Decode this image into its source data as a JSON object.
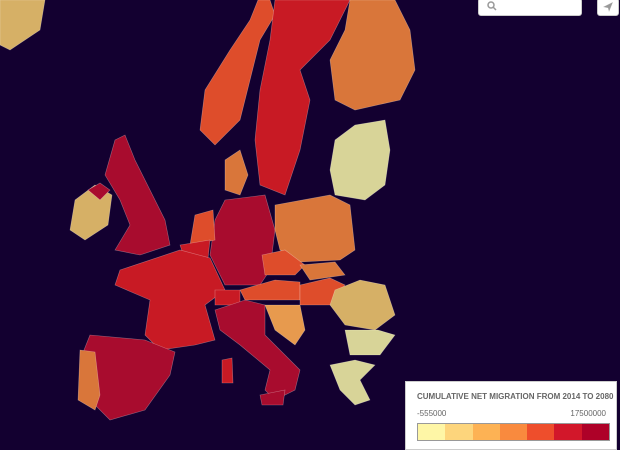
{
  "legend": {
    "title": "CUMULATIVE NET MIGRATION FROM 2014 TO 2080",
    "min_label": -555000,
    "max_label": 17500000,
    "colors": [
      "#fef6a6",
      "#fdd57c",
      "#fdb254",
      "#f98a3e",
      "#ee4e2c",
      "#d2172a",
      "#ae0128"
    ]
  },
  "map": {
    "background": "#130030",
    "land_shades": [
      "#d8d498",
      "#d6b066",
      "#e79a4e",
      "#d9763a",
      "#de4d2b",
      "#c81a24",
      "#a80c2e"
    ]
  }
}
